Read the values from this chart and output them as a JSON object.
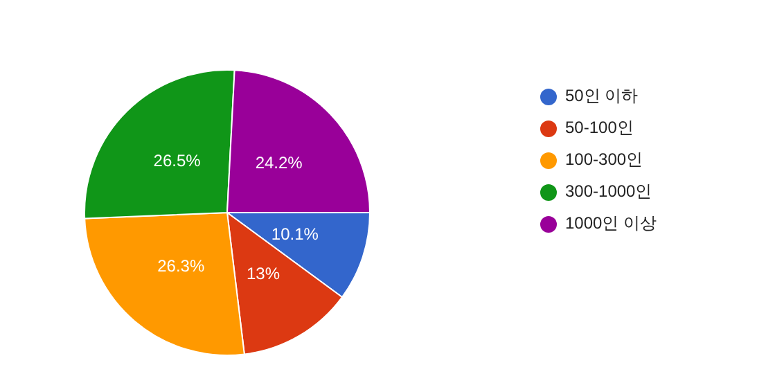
{
  "chart_data": {
    "type": "pie",
    "categories": [
      "50인 이하",
      "50-100인",
      "100-300인",
      "300-1000인",
      "1000인 이상"
    ],
    "values": [
      10.1,
      13,
      26.3,
      26.5,
      24.2
    ],
    "colors": [
      "#3366cc",
      "#dc3912",
      "#ff9900",
      "#109618",
      "#990099"
    ],
    "value_labels": [
      "10.1%",
      "13%",
      "26.3%",
      "26.5%",
      "24.2%"
    ],
    "legend": "right"
  }
}
